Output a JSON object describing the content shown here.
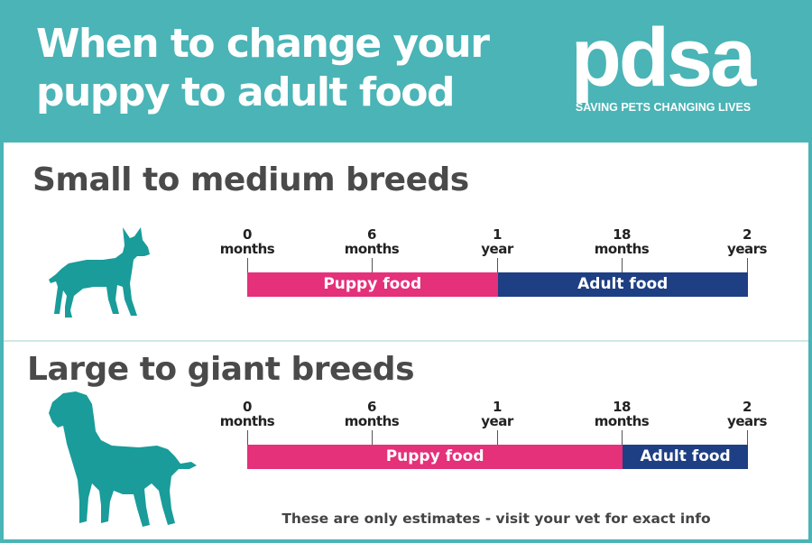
{
  "header": {
    "title_line1": "When to change your",
    "title_line2": "puppy to adult food",
    "brand_name": "pdsa",
    "brand_tagline": "SAVING PETS CHANGING LIVES"
  },
  "colors": {
    "teal": "#4ab4b6",
    "puppy_food": "#e5307a",
    "adult_food": "#1f3f84",
    "heading_text": "#4a4a4a"
  },
  "ticks": [
    {
      "value": "0",
      "unit": "months",
      "age_months": 0
    },
    {
      "value": "6",
      "unit": "months",
      "age_months": 6
    },
    {
      "value": "1",
      "unit": "year",
      "age_months": 12
    },
    {
      "value": "18",
      "unit": "months",
      "age_months": 18
    },
    {
      "value": "2",
      "unit": "years",
      "age_months": 24
    }
  ],
  "sections": [
    {
      "title": "Small to medium breeds",
      "icon": "small-dog-silhouette-icon",
      "puppy_label": "Puppy food",
      "adult_label": "Adult food",
      "switch_age_months": 12
    },
    {
      "title": "Large to giant breeds",
      "icon": "large-dog-silhouette-icon",
      "puppy_label": "Puppy food",
      "adult_label": "Adult food",
      "switch_age_months": 18
    }
  ],
  "footer_note": "These are only estimates - visit your vet for exact info"
}
